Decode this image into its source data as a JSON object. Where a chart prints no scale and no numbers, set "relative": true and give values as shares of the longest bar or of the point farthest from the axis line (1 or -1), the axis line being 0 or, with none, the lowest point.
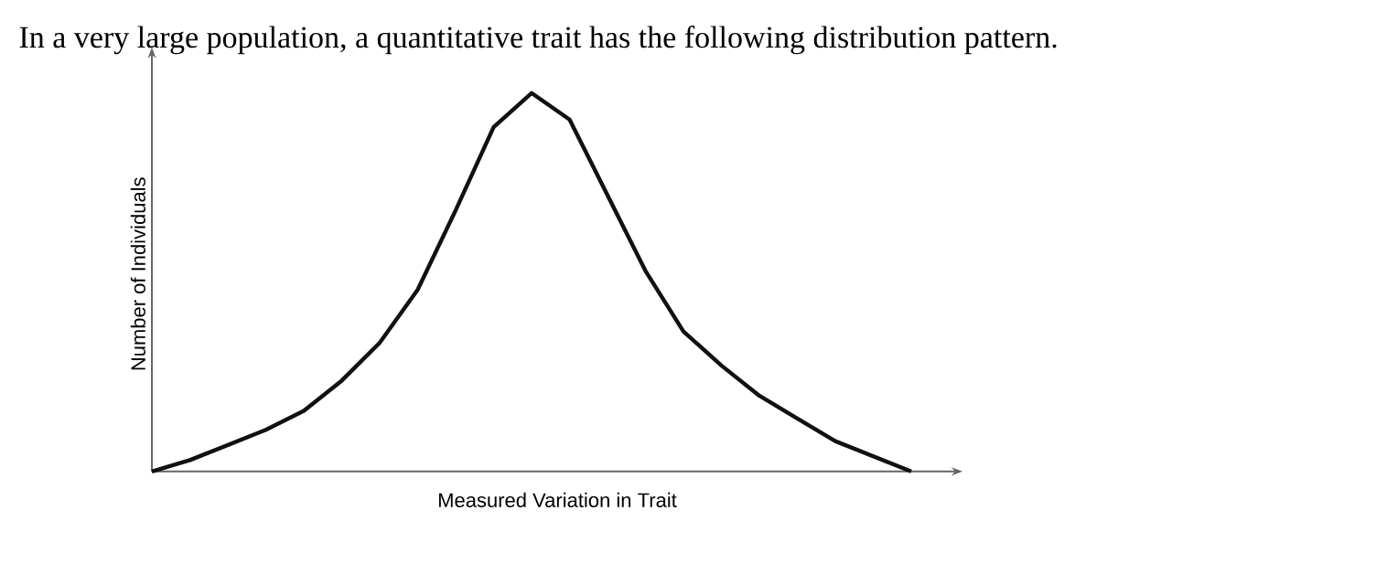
{
  "chart_data": {
    "type": "line",
    "title": "In a very large population, a quantitative trait has the following distribution pattern.",
    "xlabel": "Measured Variation in Trait",
    "ylabel": "Number of Individuals",
    "categories": [
      null,
      null,
      null,
      null,
      null,
      null,
      null,
      null,
      null,
      null,
      null,
      null,
      null,
      null,
      null,
      null,
      null,
      null,
      null,
      null,
      null
    ],
    "values": [
      0,
      0.03,
      0.07,
      0.11,
      0.16,
      0.24,
      0.34,
      0.48,
      0.69,
      0.91,
      1,
      0.93,
      0.73,
      0.53,
      0.37,
      0.28,
      0.2,
      0.14,
      0.08,
      0.04,
      0
    ],
    "relative": true,
    "color": "#111111"
  }
}
